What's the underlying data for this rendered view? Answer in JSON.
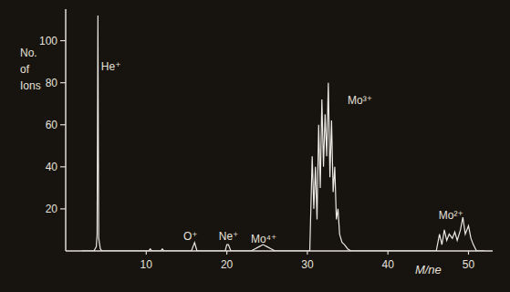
{
  "chart_data": {
    "type": "line",
    "x_label": "M/ne",
    "y_label": "No. of Ions",
    "color": "#ece9e2",
    "xlim": [
      0,
      53
    ],
    "ylim": [
      0,
      115
    ],
    "xticks": [
      10,
      20,
      30,
      40,
      50
    ],
    "yticks": [
      20,
      40,
      60,
      80,
      100
    ],
    "grid": false,
    "series": [
      {
        "name": "ions",
        "x": [
          2,
          3.5,
          3.8,
          3.9,
          4.0,
          4.05,
          4.1,
          4.3,
          4.5,
          10.3,
          10.5,
          10.7,
          11.8,
          12,
          12.2,
          15.6,
          16,
          16.3,
          19.8,
          20,
          20.2,
          20.5,
          23,
          23.5,
          24,
          24.5,
          25,
          25.5,
          26,
          30.3,
          30.6,
          30.8,
          31,
          31.2,
          31.4,
          31.6,
          31.8,
          32,
          32.2,
          32.4,
          32.6,
          32.8,
          33,
          33.2,
          33.4,
          33.6,
          33.8,
          34,
          34.3,
          34.6,
          35,
          35.4,
          46,
          46.4,
          46.7,
          47,
          47.3,
          47.6,
          48,
          48.3,
          48.6,
          49,
          49.3,
          49.6,
          50,
          50.3,
          50.6,
          51,
          52
        ],
        "values": [
          0,
          0,
          2,
          8,
          112,
          55,
          6,
          1,
          0,
          0,
          1,
          0,
          0,
          1,
          0,
          0,
          4,
          0,
          0,
          3,
          3,
          0,
          0,
          1,
          2,
          3,
          2,
          1,
          0,
          0,
          45,
          20,
          40,
          15,
          60,
          30,
          72,
          40,
          65,
          45,
          80,
          35,
          62,
          28,
          40,
          15,
          20,
          8,
          4,
          3,
          1,
          0,
          0,
          8,
          3,
          10,
          5,
          8,
          6,
          9,
          5,
          10,
          16,
          8,
          12,
          6,
          3,
          0,
          0
        ]
      }
    ],
    "annotations": [
      {
        "text": "He⁺",
        "x": 4.4,
        "y": 86
      },
      {
        "text": "O⁺",
        "x": 14.6,
        "y": 5
      },
      {
        "text": "Ne⁺",
        "x": 19.0,
        "y": 5
      },
      {
        "text": "Mo⁴⁺",
        "x": 23.0,
        "y": 4
      },
      {
        "text": "Mo³⁺",
        "x": 35.0,
        "y": 70
      },
      {
        "text": "Mo²⁺",
        "x": 46.3,
        "y": 15
      }
    ]
  }
}
